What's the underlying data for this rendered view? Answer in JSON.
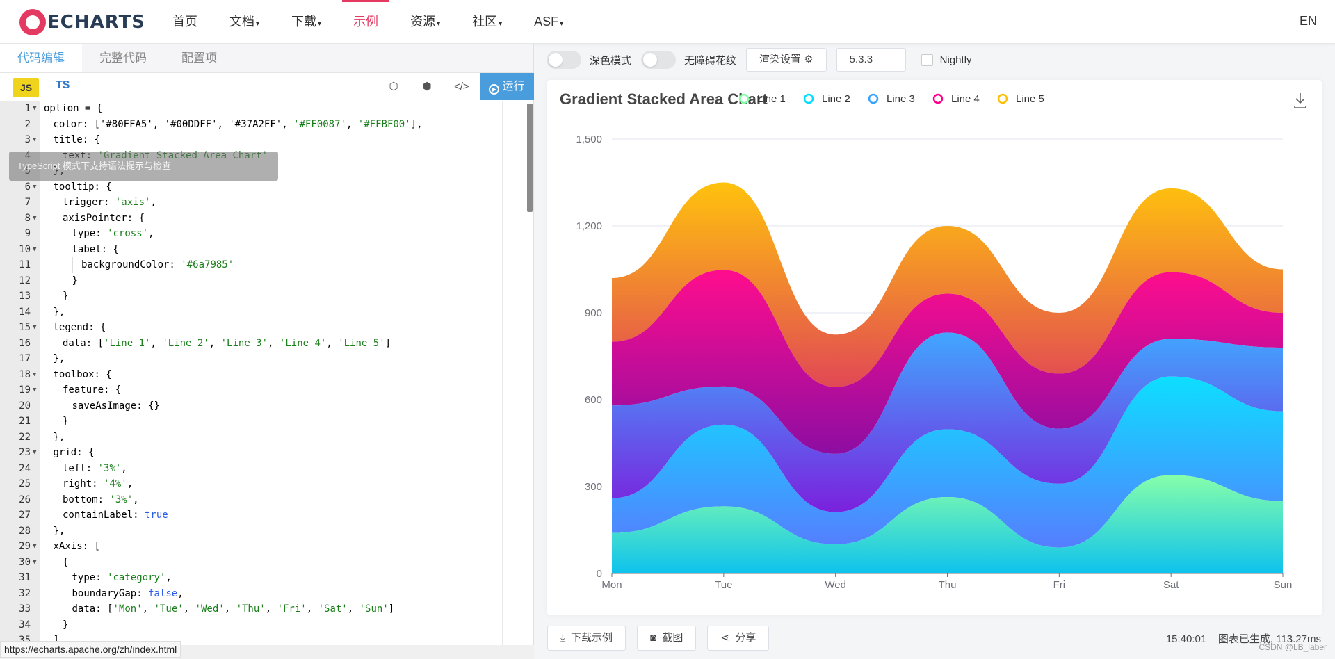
{
  "nav": {
    "logo": "ECHARTS",
    "items": [
      {
        "label": "首页",
        "caret": ""
      },
      {
        "label": "文档",
        "caret": "▾"
      },
      {
        "label": "下载",
        "caret": "▾"
      },
      {
        "label": "示例",
        "caret": ""
      },
      {
        "label": "资源",
        "caret": "▾"
      },
      {
        "label": "社区",
        "caret": "▾"
      },
      {
        "label": "ASF",
        "caret": "▾"
      }
    ],
    "active_index": 3,
    "lang": "EN"
  },
  "editor": {
    "tabs": [
      "代码编辑",
      "完整代码",
      "配置项"
    ],
    "lang_js": "JS",
    "lang_ts": "TS",
    "run_label": "运行",
    "ts_tooltip": "TypeScript 模式下支持语法提示与检查",
    "status_url": "https://echarts.apache.org/zh/index.html"
  },
  "code_lines": [
    {
      "n": "1",
      "fold": true,
      "i": 0,
      "h": "option = {"
    },
    {
      "n": "2",
      "fold": false,
      "i": 1,
      "h": "color: ['#80FFA5', '#00DDFF', '#37A2FF', <span class=\"s\">'#FF0087'</span>, <span class=\"s\">'#FFBF00'</span>],"
    },
    {
      "n": "3",
      "fold": true,
      "i": 1,
      "h": "title: {"
    },
    {
      "n": "4",
      "fold": false,
      "i": 2,
      "h": "text: <span class=\"s\">'Gradient Stacked Area Chart'</span>"
    },
    {
      "n": "5",
      "fold": false,
      "i": 1,
      "h": "},"
    },
    {
      "n": "6",
      "fold": true,
      "i": 1,
      "h": "tooltip: {"
    },
    {
      "n": "7",
      "fold": false,
      "i": 2,
      "h": "trigger: <span class=\"s\">'axis'</span>,"
    },
    {
      "n": "8",
      "fold": true,
      "i": 2,
      "h": "axisPointer: {"
    },
    {
      "n": "9",
      "fold": false,
      "i": 3,
      "h": "type: <span class=\"s\">'cross'</span>,"
    },
    {
      "n": "10",
      "fold": true,
      "i": 3,
      "h": "label: {"
    },
    {
      "n": "11",
      "fold": false,
      "i": 4,
      "h": "backgroundColor: <span class=\"s\">'#6a7985'</span>"
    },
    {
      "n": "12",
      "fold": false,
      "i": 3,
      "h": "}"
    },
    {
      "n": "13",
      "fold": false,
      "i": 2,
      "h": "}"
    },
    {
      "n": "14",
      "fold": false,
      "i": 1,
      "h": "},"
    },
    {
      "n": "15",
      "fold": true,
      "i": 1,
      "h": "legend: {"
    },
    {
      "n": "16",
      "fold": false,
      "i": 2,
      "h": "data: [<span class=\"s\">'Line 1'</span>, <span class=\"s\">'Line 2'</span>, <span class=\"s\">'Line 3'</span>, <span class=\"s\">'Line 4'</span>, <span class=\"s\">'Line 5'</span>]"
    },
    {
      "n": "17",
      "fold": false,
      "i": 1,
      "h": "},"
    },
    {
      "n": "18",
      "fold": true,
      "i": 1,
      "h": "toolbox: {"
    },
    {
      "n": "19",
      "fold": true,
      "i": 2,
      "h": "feature: {"
    },
    {
      "n": "20",
      "fold": false,
      "i": 3,
      "h": "saveAsImage: {}"
    },
    {
      "n": "21",
      "fold": false,
      "i": 2,
      "h": "}"
    },
    {
      "n": "22",
      "fold": false,
      "i": 1,
      "h": "},"
    },
    {
      "n": "23",
      "fold": true,
      "i": 1,
      "h": "grid: {"
    },
    {
      "n": "24",
      "fold": false,
      "i": 2,
      "h": "left: <span class=\"s\">'3%'</span>,"
    },
    {
      "n": "25",
      "fold": false,
      "i": 2,
      "h": "right: <span class=\"s\">'4%'</span>,"
    },
    {
      "n": "26",
      "fold": false,
      "i": 2,
      "h": "bottom: <span class=\"s\">'3%'</span>,"
    },
    {
      "n": "27",
      "fold": false,
      "i": 2,
      "h": "containLabel: <span class=\"k\">true</span>"
    },
    {
      "n": "28",
      "fold": false,
      "i": 1,
      "h": "},"
    },
    {
      "n": "29",
      "fold": true,
      "i": 1,
      "h": "xAxis: ["
    },
    {
      "n": "30",
      "fold": true,
      "i": 2,
      "h": "{"
    },
    {
      "n": "31",
      "fold": false,
      "i": 3,
      "h": "type: <span class=\"s\">'category'</span>,"
    },
    {
      "n": "32",
      "fold": false,
      "i": 3,
      "h": "boundaryGap: <span class=\"k\">false</span>,"
    },
    {
      "n": "33",
      "fold": false,
      "i": 3,
      "h": "data: [<span class=\"s\">'Mon'</span>, <span class=\"s\">'Tue'</span>, <span class=\"s\">'Wed'</span>, <span class=\"s\">'Thu'</span>, <span class=\"s\">'Fri'</span>, <span class=\"s\">'Sat'</span>, <span class=\"s\">'Sun'</span>]"
    },
    {
      "n": "34",
      "fold": false,
      "i": 2,
      "h": "}"
    },
    {
      "n": "35",
      "fold": false,
      "i": 1,
      "h": "],"
    }
  ],
  "controls": {
    "dark_mode": "深色模式",
    "a11y": "无障碍花纹",
    "render_settings": "渲染设置",
    "version": "5.3.3",
    "nightly": "Nightly"
  },
  "chart_data": {
    "type": "area",
    "title": "Gradient Stacked Area Chart",
    "categories": [
      "Mon",
      "Tue",
      "Wed",
      "Thu",
      "Fri",
      "Sat",
      "Sun"
    ],
    "ylim": [
      0,
      1500
    ],
    "yticks": [
      "0",
      "300",
      "600",
      "900",
      "1,200",
      "1,500"
    ],
    "smooth": true,
    "stacked": true,
    "legend_position": "top",
    "series": [
      {
        "name": "Line 1",
        "values": [
          140,
          232,
          101,
          264,
          90,
          340,
          250
        ],
        "color_top": "#80FFA5",
        "color_bottom": "#01BFEC"
      },
      {
        "name": "Line 2",
        "values": [
          120,
          282,
          111,
          234,
          220,
          340,
          310
        ],
        "color_top": "#00DDFF",
        "color_bottom": "#4D77FF"
      },
      {
        "name": "Line 3",
        "values": [
          320,
          132,
          201,
          334,
          190,
          130,
          220
        ],
        "color_top": "#37A2FF",
        "color_bottom": "#7415DB"
      },
      {
        "name": "Line 4",
        "values": [
          220,
          402,
          231,
          134,
          190,
          230,
          120
        ],
        "color_top": "#FF0087",
        "color_bottom": "#87009D"
      },
      {
        "name": "Line 5",
        "values": [
          220,
          302,
          181,
          234,
          210,
          290,
          150
        ],
        "color_top": "#FFBF00",
        "color_bottom": "#E03E4C"
      }
    ]
  },
  "bottom": {
    "download": "下载示例",
    "screenshot": "截图",
    "share": "分享",
    "time": "15:40:01",
    "info": "图表已生成, 113.27ms",
    "watermark": "CSDN @LB_laber"
  }
}
